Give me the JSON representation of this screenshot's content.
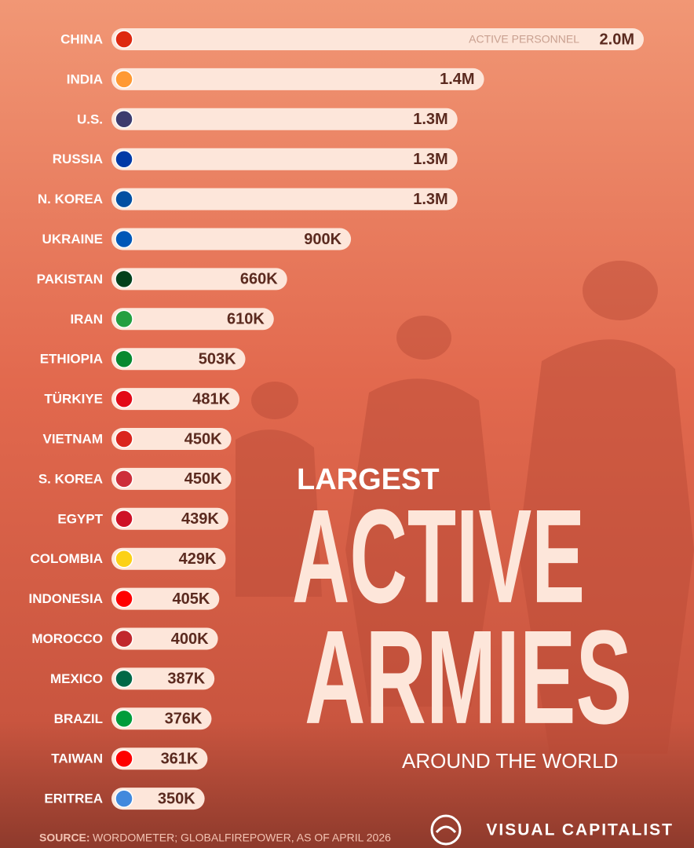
{
  "chart_data": {
    "type": "bar",
    "title_lines": [
      "LARGEST",
      "ACTIVE",
      "ARMIES"
    ],
    "subtitle": "AROUND THE WORLD",
    "annotation": "ACTIVE PERSONNEL",
    "source_label": "SOURCE:",
    "source": "WORDOMETER; GLOBALFIREPOWER, AS OF APRIL 2026",
    "brand": "VISUAL CAPITALIST",
    "color": "#fde6da",
    "categories": [
      "CHINA",
      "INDIA",
      "U.S.",
      "RUSSIA",
      "N. KOREA",
      "UKRAINE",
      "PAKISTAN",
      "IRAN",
      "ETHIOPIA",
      "TÜRKIYE",
      "VIETNAM",
      "S. KOREA",
      "EGYPT",
      "COLOMBIA",
      "INDONESIA",
      "MOROCCO",
      "MEXICO",
      "BRAZIL",
      "TAIWAN",
      "ERITREA"
    ],
    "values": [
      2000000,
      1400000,
      1300000,
      1300000,
      1300000,
      900000,
      660000,
      610000,
      503000,
      481000,
      450000,
      450000,
      439000,
      429000,
      405000,
      400000,
      387000,
      376000,
      361000,
      350000
    ],
    "value_labels": [
      "2.0M",
      "1.4M",
      "1.3M",
      "1.3M",
      "1.3M",
      "900K",
      "660K",
      "610K",
      "503K",
      "481K",
      "450K",
      "450K",
      "439K",
      "429K",
      "405K",
      "400K",
      "387K",
      "376K",
      "361K",
      "350K"
    ]
  }
}
